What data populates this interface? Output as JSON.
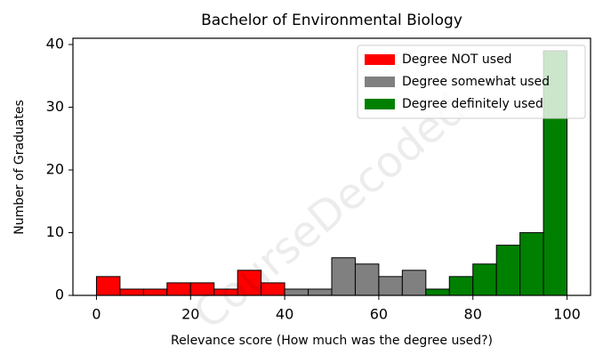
{
  "chart_data": {
    "type": "histogram",
    "title": "Bachelor of Environmental Biology",
    "x_label": "Relevance score (How much was the degree used?)",
    "y_label": "Number of Graduates",
    "watermark": "CourseDecoded",
    "series": [
      {
        "name": "Degree NOT used",
        "color": "#ff0000",
        "bins": [
          0,
          5,
          10,
          15,
          20,
          25,
          30,
          35,
          40
        ],
        "counts": [
          3,
          1,
          1,
          2,
          2,
          1,
          4,
          2
        ]
      },
      {
        "name": "Degree somewhat used",
        "color": "#808080",
        "bins": [
          40,
          45,
          50,
          55,
          60,
          65,
          70
        ],
        "counts": [
          1,
          1,
          6,
          5,
          3,
          4
        ]
      },
      {
        "name": "Degree definitely used",
        "color": "#008000",
        "bins": [
          70,
          75,
          80,
          85,
          90,
          95,
          100
        ],
        "counts": [
          1,
          3,
          5,
          8,
          10,
          39
        ]
      }
    ],
    "xlim": [
      -5,
      105
    ],
    "ylim": [
      0,
      41
    ],
    "xticks": [
      0,
      20,
      40,
      60,
      80,
      100
    ],
    "yticks": [
      0,
      10,
      20,
      30,
      40
    ],
    "legend": "upper right"
  }
}
